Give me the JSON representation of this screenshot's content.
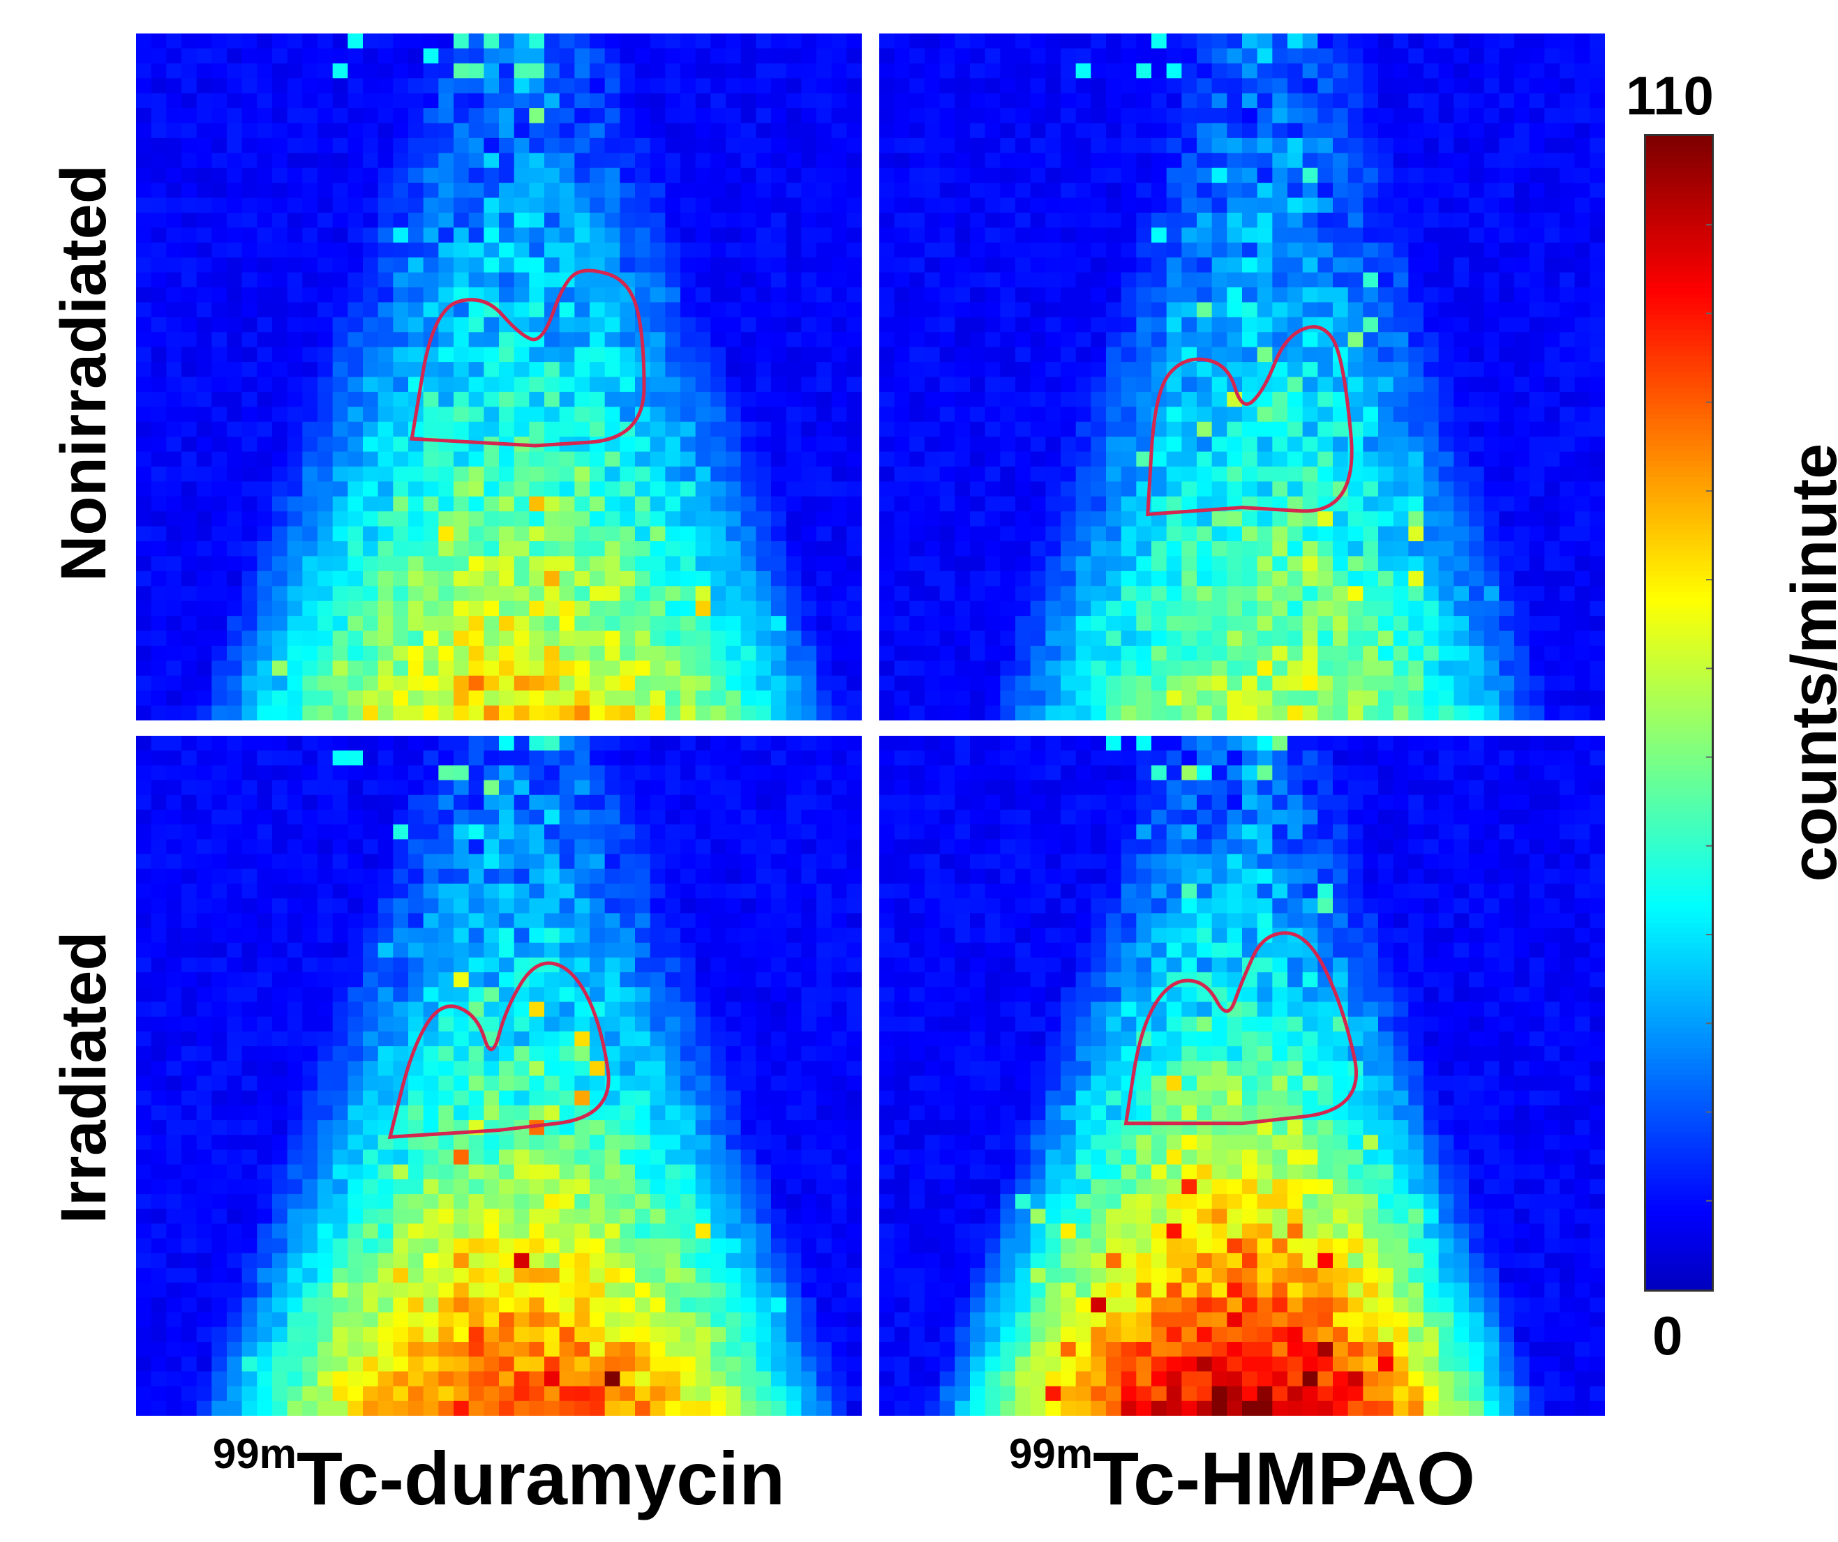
{
  "chart_data": {
    "type": "heatmap",
    "rows": [
      "Nonirradiated",
      "Irradiated"
    ],
    "columns": [
      {
        "sup": "99m",
        "name": "Tc-duramycin"
      },
      {
        "sup": "99m",
        "name": "Tc-HMPAO"
      }
    ],
    "colorbar": {
      "min": 0,
      "max": 110,
      "label": "counts/minute",
      "min_label": "0",
      "max_label": "110",
      "colormap": "jet"
    },
    "panels": [
      {
        "row": "Nonirradiated",
        "column": "Tc-duramycin",
        "roi": "heart outline",
        "roi_color": "#d4264f",
        "relative_intensity": 0.4
      },
      {
        "row": "Nonirradiated",
        "column": "Tc-HMPAO",
        "roi": "heart outline",
        "roi_color": "#d4264f",
        "relative_intensity": 0.3
      },
      {
        "row": "Irradiated",
        "column": "Tc-duramycin",
        "roi": "heart outline",
        "roi_color": "#d4264f",
        "relative_intensity": 0.55
      },
      {
        "row": "Irradiated",
        "column": "Tc-HMPAO",
        "roi": "heart outline",
        "roi_color": "#d4264f",
        "relative_intensity": 0.7
      }
    ]
  }
}
